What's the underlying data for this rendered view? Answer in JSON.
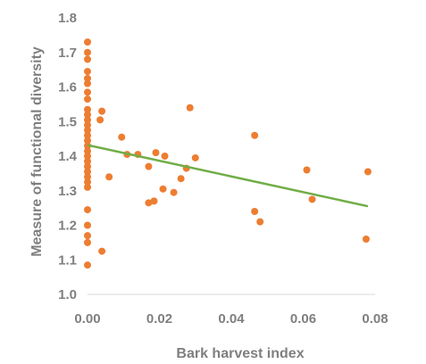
{
  "chart_data": {
    "type": "scatter",
    "xlabel": "Bark harvest index",
    "ylabel": "Measure of functional diversity",
    "xlim": [
      0,
      0.08
    ],
    "ylim": [
      1.0,
      1.8
    ],
    "x_ticks": [
      "0.00",
      "0.02",
      "0.04",
      "0.06",
      "0.08"
    ],
    "y_ticks": [
      "1.0",
      "1.1",
      "1.2",
      "1.3",
      "1.4",
      "1.5",
      "1.6",
      "1.7",
      "1.8"
    ],
    "grid": false,
    "legend": "none",
    "marker_color": "#ed7d31",
    "trendline_color": "#70ad47",
    "points": [
      [
        0,
        1.73
      ],
      [
        0,
        1.7
      ],
      [
        0,
        1.68
      ],
      [
        0,
        1.645
      ],
      [
        0,
        1.625
      ],
      [
        0,
        1.61
      ],
      [
        0,
        1.585
      ],
      [
        0,
        1.565
      ],
      [
        0,
        1.535
      ],
      [
        0,
        1.52
      ],
      [
        0,
        1.505
      ],
      [
        0,
        1.49
      ],
      [
        0,
        1.475
      ],
      [
        0,
        1.46
      ],
      [
        0,
        1.445
      ],
      [
        0,
        1.43
      ],
      [
        0,
        1.415
      ],
      [
        0,
        1.4
      ],
      [
        0,
        1.385
      ],
      [
        0,
        1.37
      ],
      [
        0,
        1.355
      ],
      [
        0,
        1.34
      ],
      [
        0,
        1.325
      ],
      [
        0,
        1.31
      ],
      [
        0,
        1.245
      ],
      [
        0,
        1.2
      ],
      [
        0,
        1.17
      ],
      [
        0,
        1.15
      ],
      [
        0,
        1.085
      ],
      [
        0.0035,
        1.505
      ],
      [
        0.004,
        1.53
      ],
      [
        0.004,
        1.125
      ],
      [
        0.006,
        1.34
      ],
      [
        0.0095,
        1.455
      ],
      [
        0.011,
        1.405
      ],
      [
        0.014,
        1.405
      ],
      [
        0.017,
        1.37
      ],
      [
        0.017,
        1.265
      ],
      [
        0.0185,
        1.27
      ],
      [
        0.019,
        1.41
      ],
      [
        0.021,
        1.305
      ],
      [
        0.0215,
        1.4
      ],
      [
        0.024,
        1.295
      ],
      [
        0.026,
        1.335
      ],
      [
        0.0275,
        1.365
      ],
      [
        0.0285,
        1.54
      ],
      [
        0.03,
        1.395
      ],
      [
        0.0465,
        1.46
      ],
      [
        0.0465,
        1.24
      ],
      [
        0.048,
        1.21
      ],
      [
        0.061,
        1.36
      ],
      [
        0.0625,
        1.275
      ],
      [
        0.0775,
        1.16
      ],
      [
        0.078,
        1.355
      ]
    ],
    "trendline": {
      "x": [
        0,
        0.078
      ],
      "y": [
        1.432,
        1.255
      ]
    }
  }
}
